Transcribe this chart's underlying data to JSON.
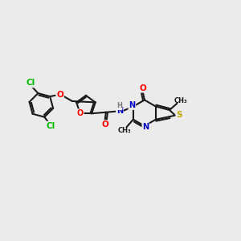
{
  "background_color": "#ebebeb",
  "bond_color": "#1a1a1a",
  "atom_colors": {
    "Cl": "#00bb00",
    "O": "#ff0000",
    "N": "#0000cc",
    "S": "#bbaa00",
    "H": "#777777",
    "C": "#1a1a1a"
  },
  "figsize": [
    3.0,
    3.0
  ],
  "dpi": 100
}
